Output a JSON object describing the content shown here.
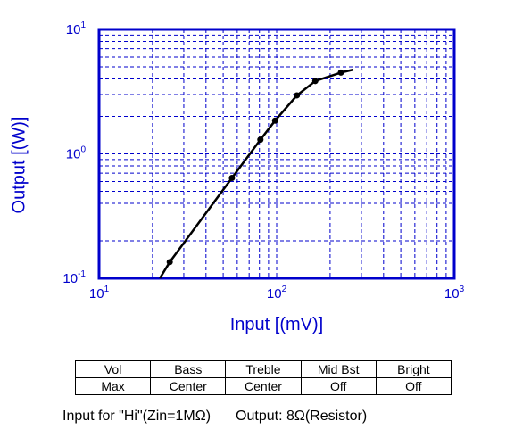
{
  "chart_data": {
    "type": "line",
    "title": "",
    "xlabel": "Input [(mV)]",
    "ylabel": "Output [(W)]",
    "xscale": "log",
    "yscale": "log",
    "xlim": [
      10,
      1000
    ],
    "ylim": [
      0.1,
      10
    ],
    "grid": true,
    "x_ticks": [
      {
        "base": "10",
        "exp": "1"
      },
      {
        "base": "10",
        "exp": "2"
      },
      {
        "base": "10",
        "exp": "3"
      }
    ],
    "y_ticks": [
      {
        "base": "10",
        "exp": "-1"
      },
      {
        "base": "10",
        "exp": "0"
      },
      {
        "base": "10",
        "exp": "1"
      }
    ],
    "curve": [
      [
        22,
        0.1
      ],
      [
        25,
        0.135
      ],
      [
        56,
        0.64
      ],
      [
        81,
        1.3
      ],
      [
        98,
        1.85
      ],
      [
        130,
        2.95
      ],
      [
        165,
        3.85
      ],
      [
        230,
        4.5
      ],
      [
        270,
        4.75
      ]
    ],
    "markers": [
      [
        25,
        0.135
      ],
      [
        56,
        0.64
      ],
      [
        81,
        1.3
      ],
      [
        98,
        1.85
      ],
      [
        130,
        2.95
      ],
      [
        165,
        3.85
      ],
      [
        230,
        4.5
      ]
    ],
    "colors": {
      "axis": "#0000cc",
      "grid": "#0000cc",
      "curve": "#000000"
    }
  },
  "settings": {
    "headers": [
      "Vol",
      "Bass",
      "Treble",
      "Mid Bst",
      "Bright"
    ],
    "values": [
      "Max",
      "Center",
      "Center",
      "Off",
      "Off"
    ]
  },
  "note": {
    "input": "Input for \"Hi\"(Zin=1MΩ)",
    "output": "Output: 8Ω(Resistor)"
  }
}
